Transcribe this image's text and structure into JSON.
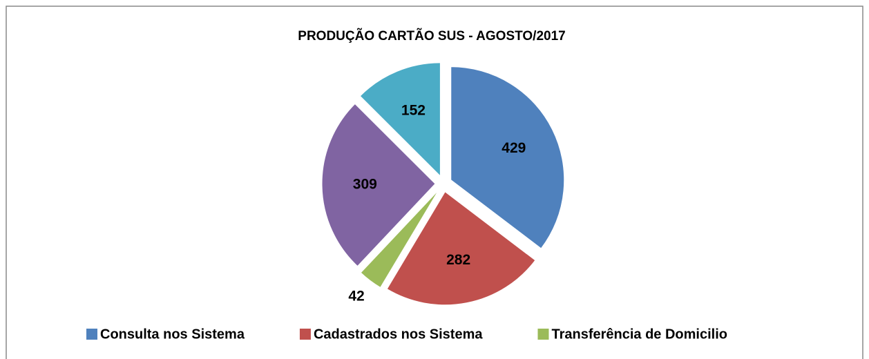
{
  "chart_data": {
    "type": "pie",
    "title": "PRODUÇÃO CARTÃO SUS - AGOSTO/2017",
    "categories": [
      "Consulta nos Sistema",
      "Cadastrados nos Sistema",
      "Transferência de Domicilio",
      null,
      null
    ],
    "values": [
      429,
      282,
      42,
      309,
      152
    ],
    "colors": [
      "#4f81bd",
      "#c0504d",
      "#9bbb59",
      "#8064a2",
      "#4bacc6"
    ],
    "legend": "bottom"
  }
}
